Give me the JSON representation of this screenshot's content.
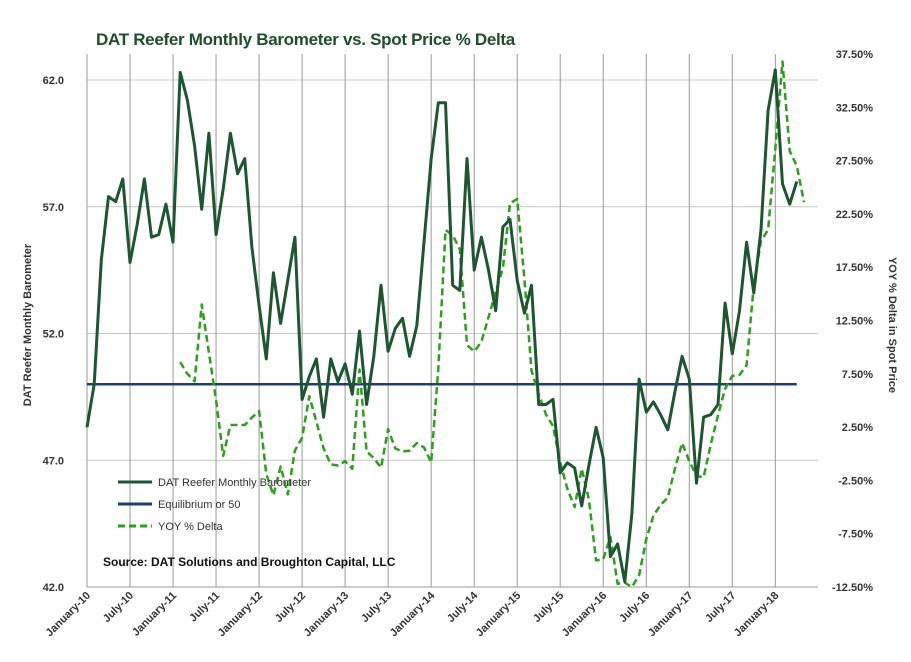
{
  "colors": {
    "barometer": "#1e5631",
    "equilibrium": "#1f3f73",
    "yoy": "#2e9e1e",
    "grid": "#c8c8c8",
    "vline": "#9a9a9a"
  },
  "chart_data": {
    "type": "line",
    "title": "DAT Reefer Monthly  Barometer vs. Spot Price % Delta",
    "ylabel": "DAT Reefer Monthly Barometer",
    "y2label": "YOY % Delta in Spot Price",
    "source": "Source: DAT Solutions and Broughton Capital, LLC",
    "ylim": [
      42,
      63
    ],
    "y2lim": [
      -12.5,
      37.5
    ],
    "yticks": [
      "62.0",
      "57.0",
      "52.0",
      "47.0",
      "42.0"
    ],
    "y2ticks": [
      "37.50%",
      "32.50%",
      "27.50%",
      "22.50%",
      "17.50%",
      "12.50%",
      "7.50%",
      "2.50%",
      "-2.50%",
      "-7.50%",
      "-12.50%"
    ],
    "xticks": [
      "January-10",
      "July-10",
      "January-11",
      "July-11",
      "January-12",
      "July-12",
      "January-13",
      "July-13",
      "January-14",
      "July-14",
      "January-15",
      "July-15",
      "January-16",
      "July-16",
      "January-17",
      "July-17",
      "January-18"
    ],
    "grid": true,
    "legend_position": "bottom-left",
    "series": [
      {
        "name": "DAT Reefer Monthly Barometer",
        "style": "solid",
        "axis": "left",
        "start_index": 0,
        "values": [
          48.3,
          50.0,
          54.9,
          57.4,
          57.2,
          58.1,
          54.8,
          56.3,
          58.1,
          55.8,
          55.9,
          57.1,
          55.6,
          62.3,
          61.2,
          59.4,
          56.9,
          59.9,
          55.9,
          57.7,
          59.9,
          58.3,
          58.9,
          55.4,
          53.1,
          51.0,
          54.4,
          52.4,
          54.1,
          55.8,
          49.4,
          50.3,
          51.0,
          48.7,
          51.0,
          50.1,
          50.8,
          49.6,
          52.1,
          49.2,
          51.1,
          53.9,
          51.3,
          52.2,
          52.6,
          51.1,
          52.3,
          55.6,
          58.9,
          61.1,
          61.1,
          53.9,
          53.7,
          58.9,
          54.5,
          55.8,
          54.5,
          52.9,
          56.2,
          56.5,
          54.1,
          52.8,
          53.9,
          49.2,
          49.2,
          49.4,
          46.5,
          46.9,
          46.7,
          45.2,
          46.8,
          48.3,
          47.1,
          43.2,
          43.7,
          42.2,
          44.9,
          50.2,
          48.9,
          49.3,
          48.8,
          48.2,
          49.7,
          51.1,
          50.2,
          46.1,
          48.7,
          48.8,
          49.2,
          53.2,
          51.2,
          52.9,
          55.6,
          53.6,
          56.1,
          60.8,
          62.4,
          57.9,
          57.1,
          58.0
        ]
      },
      {
        "name": "Equilibrium or 50",
        "style": "solid",
        "axis": "left",
        "start_index": 0,
        "values": [
          50,
          50,
          50,
          50,
          50,
          50,
          50,
          50,
          50,
          50,
          50,
          50,
          50,
          50,
          50,
          50,
          50,
          50,
          50,
          50,
          50,
          50,
          50,
          50,
          50,
          50,
          50,
          50,
          50,
          50,
          50,
          50,
          50,
          50,
          50,
          50,
          50,
          50,
          50,
          50,
          50,
          50,
          50,
          50,
          50,
          50,
          50,
          50,
          50,
          50,
          50,
          50,
          50,
          50,
          50,
          50,
          50,
          50,
          50,
          50,
          50,
          50,
          50,
          50,
          50,
          50,
          50,
          50,
          50,
          50,
          50,
          50,
          50,
          50,
          50,
          50,
          50,
          50,
          50,
          50,
          50,
          50,
          50,
          50,
          50,
          50,
          50,
          50,
          50,
          50,
          50,
          50,
          50,
          50,
          50,
          50,
          50,
          50,
          50,
          50
        ]
      },
      {
        "name": "YOY % Delta",
        "style": "dashed",
        "axis": "right",
        "start_index": 13,
        "values": [
          8.6,
          7.5,
          6.8,
          14.0,
          9.5,
          5.0,
          -0.2,
          2.7,
          2.7,
          2.7,
          3.4,
          4.0,
          -1.9,
          -3.9,
          -1.2,
          -3.8,
          0.3,
          1.5,
          5.4,
          3.0,
          0.5,
          -1.0,
          -1.1,
          -0.7,
          -1.4,
          7.9,
          0.2,
          -0.4,
          -1.3,
          2.3,
          0.5,
          0.2,
          0.3,
          1.0,
          0.6,
          -0.8,
          8.0,
          21.0,
          20.5,
          19.2,
          10.2,
          9.6,
          10.5,
          12.8,
          15.2,
          17.4,
          23.5,
          23.9,
          16.4,
          7.8,
          5.6,
          3.7,
          2.6,
          -0.8,
          -3.3,
          -5.0,
          -1.4,
          -4.3,
          -10.0,
          -9.9,
          -7.8,
          -12.2,
          -12.1,
          -12.5,
          -11.4,
          -8.0,
          -5.8,
          -4.8,
          -4.1,
          -1.4,
          1.0,
          -0.7,
          -2.1,
          -2.2,
          0.9,
          3.6,
          6.1,
          7.3,
          7.4,
          8.3,
          15.8,
          20.0,
          21.0,
          28.6,
          36.8,
          28.4,
          27.0,
          23.6
        ]
      }
    ]
  }
}
